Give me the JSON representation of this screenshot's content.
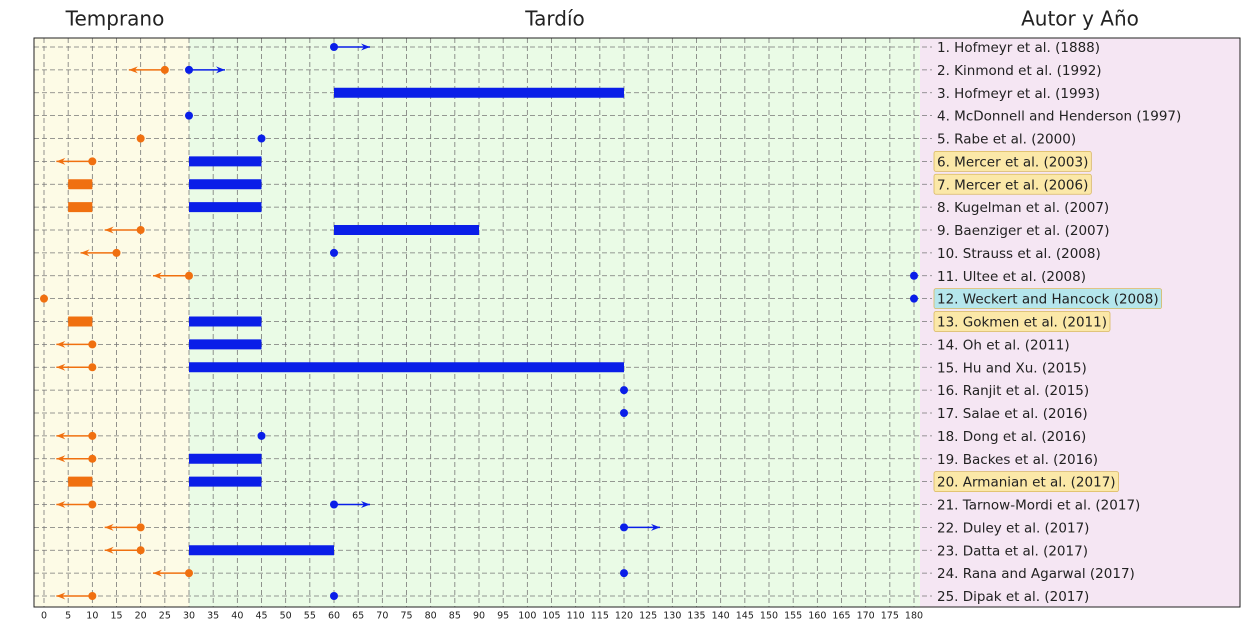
{
  "chart_data": {
    "type": "timeline",
    "headers": [
      "Temprano",
      "Tardío",
      "Autor y Año"
    ],
    "xlim": [
      0,
      180
    ],
    "xticks": [
      0,
      5,
      10,
      15,
      20,
      25,
      30,
      35,
      40,
      45,
      50,
      55,
      60,
      65,
      70,
      75,
      80,
      85,
      90,
      95,
      100,
      105,
      110,
      115,
      120,
      125,
      130,
      135,
      140,
      145,
      150,
      155,
      160,
      165,
      170,
      175,
      180
    ],
    "early_color": "#f07010",
    "late_color": "#0a1ee8",
    "zones": [
      {
        "from": 0,
        "to": 30,
        "color": "#fdfbe6"
      },
      {
        "from": 30,
        "to": 180,
        "color": "#eafbe6"
      }
    ],
    "label_zone_color": "#f5e6f3",
    "grid": true,
    "studies": [
      {
        "label": "1.  Hofmeyr et al. (1888)",
        "late": {
          "kind": "right",
          "value": 60
        }
      },
      {
        "label": "2.  Kinmond et al. (1992)",
        "early": {
          "kind": "left",
          "value": 25
        },
        "late": {
          "kind": "right",
          "value": 30
        }
      },
      {
        "label": "3.  Hofmeyr et al. (1993)",
        "late": {
          "kind": "range",
          "values": [
            60,
            120
          ]
        }
      },
      {
        "label": "4.  McDonnell and Henderson (1997)",
        "late": {
          "kind": "point",
          "value": 30
        }
      },
      {
        "label": "5.  Rabe et al. (2000)",
        "early": {
          "kind": "point",
          "value": 20
        },
        "late": {
          "kind": "point",
          "value": 45
        }
      },
      {
        "label": "6.  Mercer et al. (2003)",
        "highlight": "#fbe8a8",
        "early": {
          "kind": "left",
          "value": 10
        },
        "late": {
          "kind": "range",
          "values": [
            30,
            45
          ]
        }
      },
      {
        "label": "7.  Mercer et al. (2006)",
        "highlight": "#fbe8a8",
        "early": {
          "kind": "range",
          "values": [
            5,
            10
          ]
        },
        "late": {
          "kind": "range",
          "values": [
            30,
            45
          ]
        }
      },
      {
        "label": "8.  Kugelman et al. (2007)",
        "early": {
          "kind": "range",
          "values": [
            5,
            10
          ]
        },
        "late": {
          "kind": "range",
          "values": [
            30,
            45
          ]
        }
      },
      {
        "label": "9.  Baenziger et al. (2007)",
        "early": {
          "kind": "left",
          "value": 20
        },
        "late": {
          "kind": "range",
          "values": [
            60,
            90
          ]
        }
      },
      {
        "label": "10. Strauss et al. (2008)",
        "early": {
          "kind": "left",
          "value": 15
        },
        "late": {
          "kind": "point",
          "value": 60
        }
      },
      {
        "label": "11. Ultee et al. (2008)",
        "early": {
          "kind": "left",
          "value": 30
        },
        "late": {
          "kind": "point",
          "value": 180
        }
      },
      {
        "label": "12. Weckert and Hancock (2008)",
        "highlight": "#b5e6ec",
        "early": {
          "kind": "point",
          "value": 0
        },
        "late": {
          "kind": "point",
          "value": 180
        }
      },
      {
        "label": "13. Gokmen et al. (2011)",
        "highlight": "#fbe8a8",
        "early": {
          "kind": "range",
          "values": [
            5,
            10
          ]
        },
        "late": {
          "kind": "range",
          "values": [
            30,
            45
          ]
        }
      },
      {
        "label": "14. Oh et al. (2011)",
        "early": {
          "kind": "left",
          "value": 10
        },
        "late": {
          "kind": "range",
          "values": [
            30,
            45
          ]
        }
      },
      {
        "label": "15. Hu and Xu. (2015)",
        "early": {
          "kind": "left",
          "value": 10
        },
        "late": {
          "kind": "range",
          "values": [
            30,
            120
          ]
        }
      },
      {
        "label": "16. Ranjit et al. (2015)",
        "late": {
          "kind": "point",
          "value": 120
        }
      },
      {
        "label": "17. Salae et al. (2016)",
        "late": {
          "kind": "point",
          "value": 120
        }
      },
      {
        "label": "18. Dong et al. (2016)",
        "early": {
          "kind": "left",
          "value": 10
        },
        "late": {
          "kind": "point",
          "value": 45
        }
      },
      {
        "label": "19. Backes et al. (2016)",
        "early": {
          "kind": "left",
          "value": 10
        },
        "late": {
          "kind": "range",
          "values": [
            30,
            45
          ]
        }
      },
      {
        "label": "20. Armanian et al. (2017)",
        "highlight": "#fbe8a8",
        "early": {
          "kind": "range",
          "values": [
            5,
            10
          ]
        },
        "late": {
          "kind": "range",
          "values": [
            30,
            45
          ]
        }
      },
      {
        "label": "21. Tarnow-Mordi et al. (2017)",
        "early": {
          "kind": "left",
          "value": 10
        },
        "late": {
          "kind": "right",
          "value": 60
        }
      },
      {
        "label": "22. Duley et al. (2017)",
        "early": {
          "kind": "left",
          "value": 20
        },
        "late": {
          "kind": "right",
          "value": 120
        }
      },
      {
        "label": "23. Datta et al. (2017)",
        "early": {
          "kind": "left",
          "value": 20
        },
        "late": {
          "kind": "range",
          "values": [
            30,
            60
          ]
        }
      },
      {
        "label": "24. Rana and Agarwal (2017)",
        "early": {
          "kind": "left",
          "value": 30
        },
        "late": {
          "kind": "point",
          "value": 120
        }
      },
      {
        "label": "25. Dipak et al. (2017)",
        "early": {
          "kind": "left",
          "value": 10
        },
        "late": {
          "kind": "point",
          "value": 60
        }
      }
    ]
  }
}
